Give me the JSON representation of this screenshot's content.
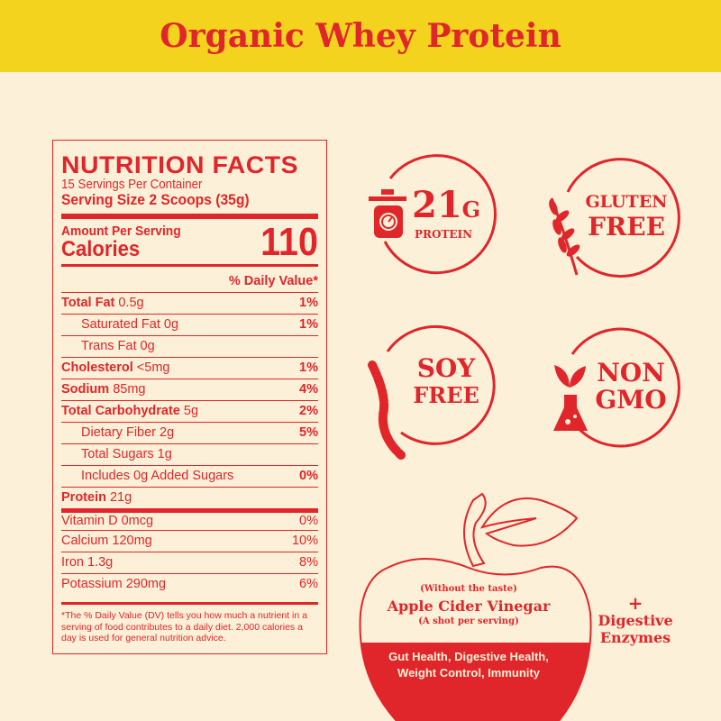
{
  "title": "Organic Whey Protein",
  "colors": {
    "red": "#e0262a",
    "yellow": "#f3d31d",
    "background": "#fcf0d8"
  },
  "nutrition": {
    "heading": "NUTRITION FACTS",
    "servings": "15 Servings Per Container",
    "serving_size": "Serving Size 2 Scoops (35g)",
    "amount_per_serving": "Amount Per Serving",
    "calories_label": "Calories",
    "calories": "110",
    "dv_header": "% Daily Value*",
    "rows": [
      {
        "name": "Total Fat",
        "amount": "0.5g",
        "dv": "1%"
      },
      {
        "name": "Saturated Fat 0g",
        "amount": "",
        "dv": "1%"
      },
      {
        "name": "Trans Fat 0g",
        "amount": "",
        "dv": ""
      },
      {
        "name": "Cholesterol",
        "amount": "<5mg",
        "dv": "1%"
      },
      {
        "name": "Sodium",
        "amount": "85mg",
        "dv": "4%"
      },
      {
        "name": "Total Carbohydrate",
        "amount": "5g",
        "dv": "2%"
      },
      {
        "name": "Dietary Fiber 2g",
        "amount": "",
        "dv": "5%"
      },
      {
        "name": "Total Sugars 1g",
        "amount": "",
        "dv": ""
      },
      {
        "name": "Includes 0g Added Sugars",
        "amount": "",
        "dv": "0%"
      },
      {
        "name": "Protein",
        "amount": "21g",
        "dv": ""
      }
    ],
    "vitamins": [
      {
        "name": "Vitamin D 0mcg",
        "dv": "0%"
      },
      {
        "name": "Calcium 120mg",
        "dv": "10%"
      },
      {
        "name": "Iron 1.3g",
        "dv": "8%"
      },
      {
        "name": "Potassium 290mg",
        "dv": "6%"
      }
    ],
    "footnote": "*The % Daily Value (DV) tells you how much a nutrient in a serving of food contributes to a daily diet. 2,000 calories a day is used for general nutrition advice."
  },
  "badges": {
    "protein": {
      "big": "21",
      "unit": "G",
      "label": "PROTEIN",
      "icon": "scale-icon"
    },
    "gluten": {
      "line1": "GLUTEN",
      "line2": "FREE",
      "icon": "wheat-icon"
    },
    "soy": {
      "line1": "SOY",
      "line2": "FREE",
      "icon": "soybean-icon"
    },
    "gmo": {
      "line1": "NON",
      "line2": "GMO",
      "icon": "flask-sprout-icon"
    }
  },
  "acv": {
    "note": "(Without the taste)",
    "name": "Apple Cider Vinegar",
    "sub": "(A shot per serving)",
    "benefits1": "Gut Health, Digestive Health,",
    "benefits2": "Weight Control, Immunity",
    "icon": "apple-icon"
  },
  "enzymes": {
    "plus": "+",
    "line1": "Digestive",
    "line2": "Enzymes"
  }
}
